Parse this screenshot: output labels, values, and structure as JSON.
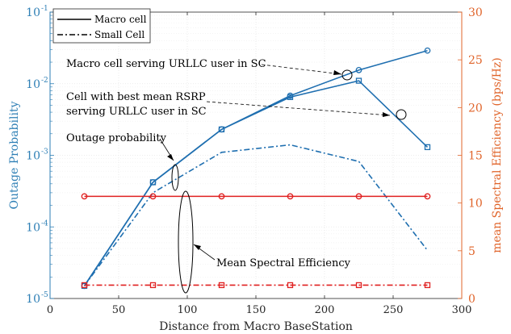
{
  "chart_data": {
    "type": "line",
    "xlabel": "Distance from Macro BaseStation",
    "ylabel_left": "Outage Probability",
    "ylabel_right": "mean Spectral Efficiency (bps/Hz)",
    "xlim": [
      0,
      300
    ],
    "xticks": [
      "0",
      "50",
      "100",
      "150",
      "200",
      "250",
      "300"
    ],
    "ylim_left": [
      1e-05,
      0.1
    ],
    "yscale_left": "log",
    "yticks_left_exp": [
      "-5",
      "-4",
      "-3",
      "-2",
      "-1"
    ],
    "ylim_right": [
      0,
      30
    ],
    "yticks_right": [
      "0",
      "5",
      "10",
      "15",
      "20",
      "25",
      "30"
    ],
    "grid": true,
    "colors": {
      "left_axis": "#2e7fb5",
      "right_axis": "#e0642a",
      "blue": "#1f6fb0",
      "red": "#e02020"
    },
    "legend": {
      "placement": "top-left",
      "entries": [
        {
          "label": "Macro cell",
          "style": "solid"
        },
        {
          "label": "Small Cell",
          "style": "dashdot"
        }
      ]
    },
    "series": [
      {
        "axis": "left",
        "color": "blue",
        "style": "solid",
        "marker": "circle",
        "x": [
          25,
          75,
          125,
          175,
          225,
          275
        ],
        "y": [
          1.5e-05,
          0.00042,
          0.0023,
          0.0068,
          0.0155,
          0.029
        ]
      },
      {
        "axis": "left",
        "color": "blue",
        "style": "solid",
        "marker": "square",
        "x": [
          25,
          75,
          125,
          175,
          225,
          275
        ],
        "y": [
          1.5e-05,
          0.00042,
          0.0023,
          0.0065,
          0.011,
          0.0013
        ]
      },
      {
        "axis": "left",
        "color": "blue",
        "style": "dashdot",
        "marker": "none",
        "x": [
          25,
          75,
          125,
          175,
          225,
          275
        ],
        "y": [
          1.5e-05,
          0.0003,
          0.0011,
          0.0014,
          0.00082,
          4.7e-05
        ]
      },
      {
        "axis": "right",
        "color": "red",
        "style": "solid",
        "marker": "circle",
        "x": [
          25,
          75,
          125,
          175,
          225,
          275
        ],
        "y": [
          10.7,
          10.7,
          10.7,
          10.7,
          10.7,
          10.7
        ]
      },
      {
        "axis": "right",
        "color": "red",
        "style": "dashdot",
        "marker": "square",
        "x": [
          25,
          75,
          125,
          175,
          225,
          275
        ],
        "y": [
          1.4,
          1.4,
          1.4,
          1.4,
          1.4,
          1.4
        ]
      }
    ],
    "annotations": [
      {
        "label": "Macro cell serving URLLC user in SC",
        "target": {
          "x": 212,
          "y": 0.013,
          "axis": "left"
        }
      },
      {
        "label_lines": [
          "Cell with best mean RSRP",
          "serving URLLC user in SC"
        ],
        "target": {
          "x": 251,
          "y": 0.0037,
          "axis": "left"
        }
      },
      {
        "label": "Outage probability",
        "target": {
          "x": 90,
          "y": 0.00065,
          "axis": "left"
        }
      },
      {
        "label": "Mean Spectral Efficiency",
        "target": {
          "x": 97,
          "y": 6,
          "axis": "right"
        }
      }
    ]
  }
}
